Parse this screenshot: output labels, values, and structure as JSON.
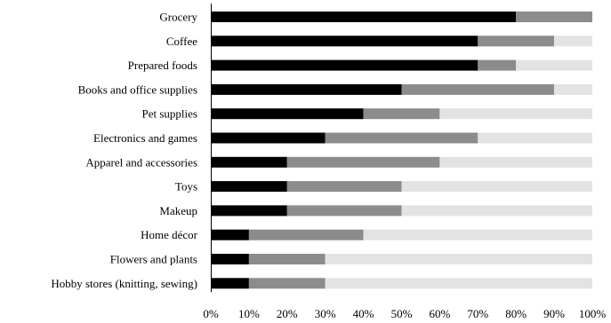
{
  "chart_data": {
    "type": "bar",
    "orientation": "horizontal",
    "stacked": true,
    "title": "",
    "xlabel": "",
    "ylabel": "",
    "xlim": [
      0,
      100
    ],
    "categories": [
      "Grocery",
      "Coffee",
      "Prepared foods",
      "Books and office supplies",
      "Pet supplies",
      "Electronics and games",
      "Apparel and accessories",
      "Toys",
      "Makeup",
      "Home décor",
      "Flowers and plants",
      "Hobby stores (knitting, sewing)"
    ],
    "series": [
      {
        "values": [
          80,
          70,
          70,
          50,
          40,
          30,
          20,
          20,
          20,
          10,
          10,
          10
        ],
        "color": "#000000"
      },
      {
        "values": [
          20,
          20,
          10,
          40,
          20,
          40,
          40,
          30,
          30,
          30,
          20,
          20
        ],
        "color": "#8c8c8c"
      },
      {
        "values": [
          0,
          10,
          20,
          10,
          40,
          30,
          40,
          50,
          50,
          60,
          70,
          70
        ],
        "color": "#e3e3e3"
      }
    ],
    "ticks": [
      "0%",
      "10%",
      "20%",
      "30%",
      "40%",
      "50%",
      "60%",
      "70%",
      "80%",
      "90%",
      "100%"
    ],
    "tick_values": [
      0,
      10,
      20,
      30,
      40,
      50,
      60,
      70,
      80,
      90,
      100
    ],
    "grid": false,
    "legend": "none"
  }
}
